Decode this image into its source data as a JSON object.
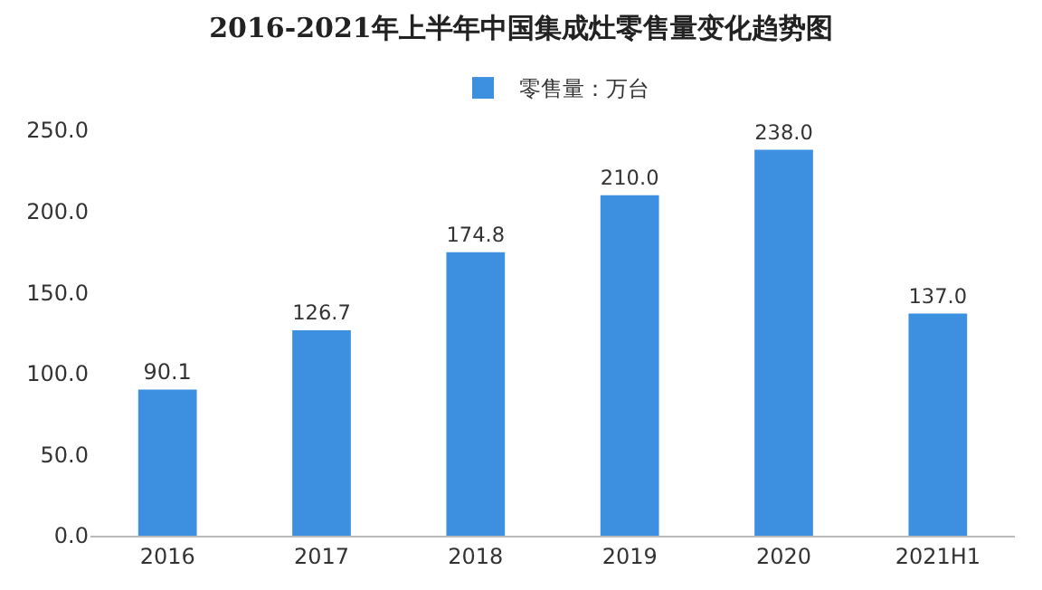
{
  "chart_data": {
    "type": "bar",
    "title": "2016-2021年上半年中国集成灶零售量变化趋势图",
    "categories": [
      "2016",
      "2017",
      "2018",
      "2019",
      "2020",
      "2021H1"
    ],
    "series": [
      {
        "name": "零售量：万台",
        "color": "#3d8fe0",
        "values": [
          90.1,
          126.7,
          174.8,
          210.0,
          238.0,
          137.0
        ],
        "value_labels": [
          "90.1",
          "126.7",
          "174.8",
          "210.0",
          "238.0",
          "137.0"
        ]
      }
    ],
    "ylim": [
      0,
      250
    ],
    "yticks": [
      {
        "value": 0,
        "label": "0.0"
      },
      {
        "value": 50,
        "label": "50.0"
      },
      {
        "value": 100,
        "label": "100.0"
      },
      {
        "value": 150,
        "label": "150.0"
      },
      {
        "value": 200,
        "label": "200.0"
      },
      {
        "value": 250,
        "label": "250.0"
      }
    ],
    "grid": false,
    "legend": "top"
  }
}
